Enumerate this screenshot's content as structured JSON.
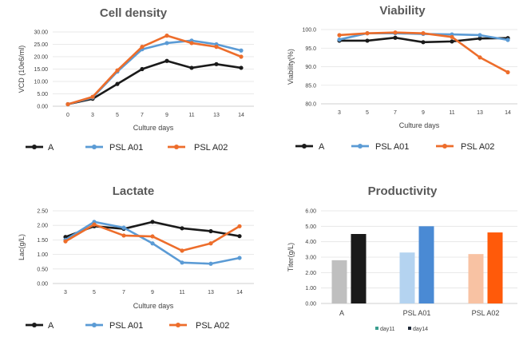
{
  "chart_data": [
    {
      "id": "cell-density",
      "type": "line",
      "title": "Cell density",
      "xlabel": "Culture days",
      "ylabel": "VCD (10e6/ml)",
      "categories": [
        "0",
        "3",
        "5",
        "7",
        "9",
        "11",
        "13",
        "14"
      ],
      "ylim": [
        0,
        30
      ],
      "yticks": [
        "0.00",
        "5.00",
        "10.00",
        "15.00",
        "20.00",
        "25.00",
        "30.00"
      ],
      "ytick_values": [
        0,
        5,
        10,
        15,
        20,
        25,
        30
      ],
      "series": [
        {
          "name": "A",
          "color": "#1a1a1a",
          "values": [
            0.8,
            3.0,
            9.0,
            15.0,
            18.3,
            15.5,
            17.0,
            15.5
          ]
        },
        {
          "name": "PSL A01",
          "color": "#5b9bd5",
          "values": [
            0.8,
            3.5,
            14.0,
            23.0,
            25.5,
            26.5,
            25.0,
            22.5
          ]
        },
        {
          "name": "PSL A02",
          "color": "#ed6d2b",
          "values": [
            0.8,
            3.8,
            14.5,
            24.0,
            28.5,
            25.5,
            24.0,
            20.0
          ]
        }
      ]
    },
    {
      "id": "viability",
      "type": "line",
      "title": "Viability",
      "xlabel": "Culture days",
      "ylabel": "Viability(%)",
      "categories": [
        "3",
        "5",
        "7",
        "9",
        "11",
        "13",
        "14"
      ],
      "ylim": [
        80,
        100
      ],
      "yticks": [
        "80.0",
        "85.0",
        "90.0",
        "95.0",
        "100.0"
      ],
      "ytick_values": [
        80,
        85,
        90,
        95,
        100
      ],
      "series": [
        {
          "name": "A",
          "color": "#1a1a1a",
          "values": [
            97.0,
            97.0,
            97.8,
            96.6,
            96.8,
            97.6,
            97.7
          ]
        },
        {
          "name": "PSL A01",
          "color": "#5b9bd5",
          "values": [
            97.3,
            99.0,
            99.0,
            98.8,
            98.7,
            98.5,
            97.2
          ]
        },
        {
          "name": "PSL A02",
          "color": "#ed6d2b",
          "values": [
            98.5,
            99.0,
            99.2,
            99.0,
            98.0,
            92.5,
            88.5
          ]
        }
      ]
    },
    {
      "id": "lactate",
      "type": "line",
      "title": "Lactate",
      "xlabel": "Culture days",
      "ylabel": "Lac(g/L)",
      "categories": [
        "3",
        "5",
        "7",
        "9",
        "11",
        "13",
        "14"
      ],
      "ylim": [
        0,
        2.5
      ],
      "yticks": [
        "0.00",
        "0.50",
        "1.00",
        "1.50",
        "2.00",
        "2.50"
      ],
      "ytick_values": [
        0,
        0.5,
        1,
        1.5,
        2,
        2.5
      ],
      "series": [
        {
          "name": "A",
          "color": "#1a1a1a",
          "values": [
            1.6,
            1.97,
            1.88,
            2.12,
            1.9,
            1.8,
            1.63
          ]
        },
        {
          "name": "PSL A01",
          "color": "#5b9bd5",
          "values": [
            1.5,
            2.12,
            1.92,
            1.38,
            0.72,
            0.68,
            0.88
          ]
        },
        {
          "name": "PSL A02",
          "color": "#ed6d2b",
          "values": [
            1.45,
            2.03,
            1.65,
            1.62,
            1.13,
            1.38,
            1.97
          ]
        }
      ]
    },
    {
      "id": "productivity",
      "type": "bar",
      "title": "Productivity",
      "xlabel": "",
      "ylabel": "Titer(g/L)",
      "categories": [
        "A",
        "PSL A01",
        "PSL A02"
      ],
      "ylim": [
        0,
        6
      ],
      "yticks": [
        "0.00",
        "1.00",
        "2.00",
        "3.00",
        "4.00",
        "5.00",
        "6.00"
      ],
      "ytick_values": [
        0,
        1,
        2,
        3,
        4,
        5,
        6
      ],
      "series": [
        {
          "name": "day11",
          "legend_color": "#3a9e8f",
          "values": [
            2.8,
            3.3,
            3.2
          ],
          "colors": [
            "#bfbfbf",
            "#b4d3f0",
            "#f8c2a3"
          ]
        },
        {
          "name": "day14",
          "legend_color": "#1f2937",
          "values": [
            4.5,
            5.0,
            4.6
          ],
          "colors": [
            "#1a1a1a",
            "#4a8ad4",
            "#ff5a0a"
          ]
        }
      ]
    }
  ]
}
